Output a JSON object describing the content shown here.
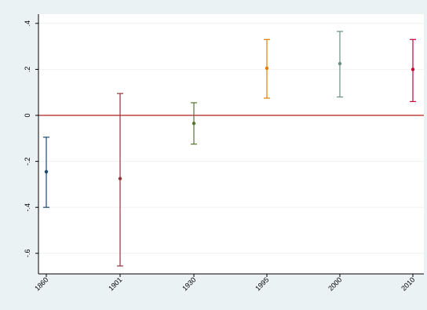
{
  "chart_data": {
    "type": "scatter",
    "title": "",
    "xlabel": "",
    "ylabel": "",
    "categories": [
      "1860",
      "1901",
      "1930",
      "1995",
      "2000",
      "2010"
    ],
    "estimates": [
      -0.245,
      -0.275,
      -0.035,
      0.205,
      0.225,
      0.2
    ],
    "ci_lower": [
      -0.4,
      -0.655,
      -0.125,
      0.075,
      0.08,
      0.06
    ],
    "ci_upper": [
      -0.095,
      0.095,
      0.055,
      0.33,
      0.365,
      0.33
    ],
    "colors": [
      "#1a476f",
      "#90353b",
      "#55752f",
      "#e37e00",
      "#6e8e84",
      "#c10534"
    ],
    "yticks": [
      -0.6,
      -0.4,
      -0.2,
      0,
      0.2,
      0.4
    ],
    "ytick_labels": [
      "-.6",
      "-.4",
      "-.2",
      "0",
      ".2",
      ".4"
    ],
    "ylim": [
      -0.68,
      0.44
    ],
    "reference_line": {
      "y": 0,
      "color": "#b22222"
    },
    "grid": true,
    "legend": "none",
    "background": "#eaf2f3",
    "plot_background": "#ffffff"
  }
}
